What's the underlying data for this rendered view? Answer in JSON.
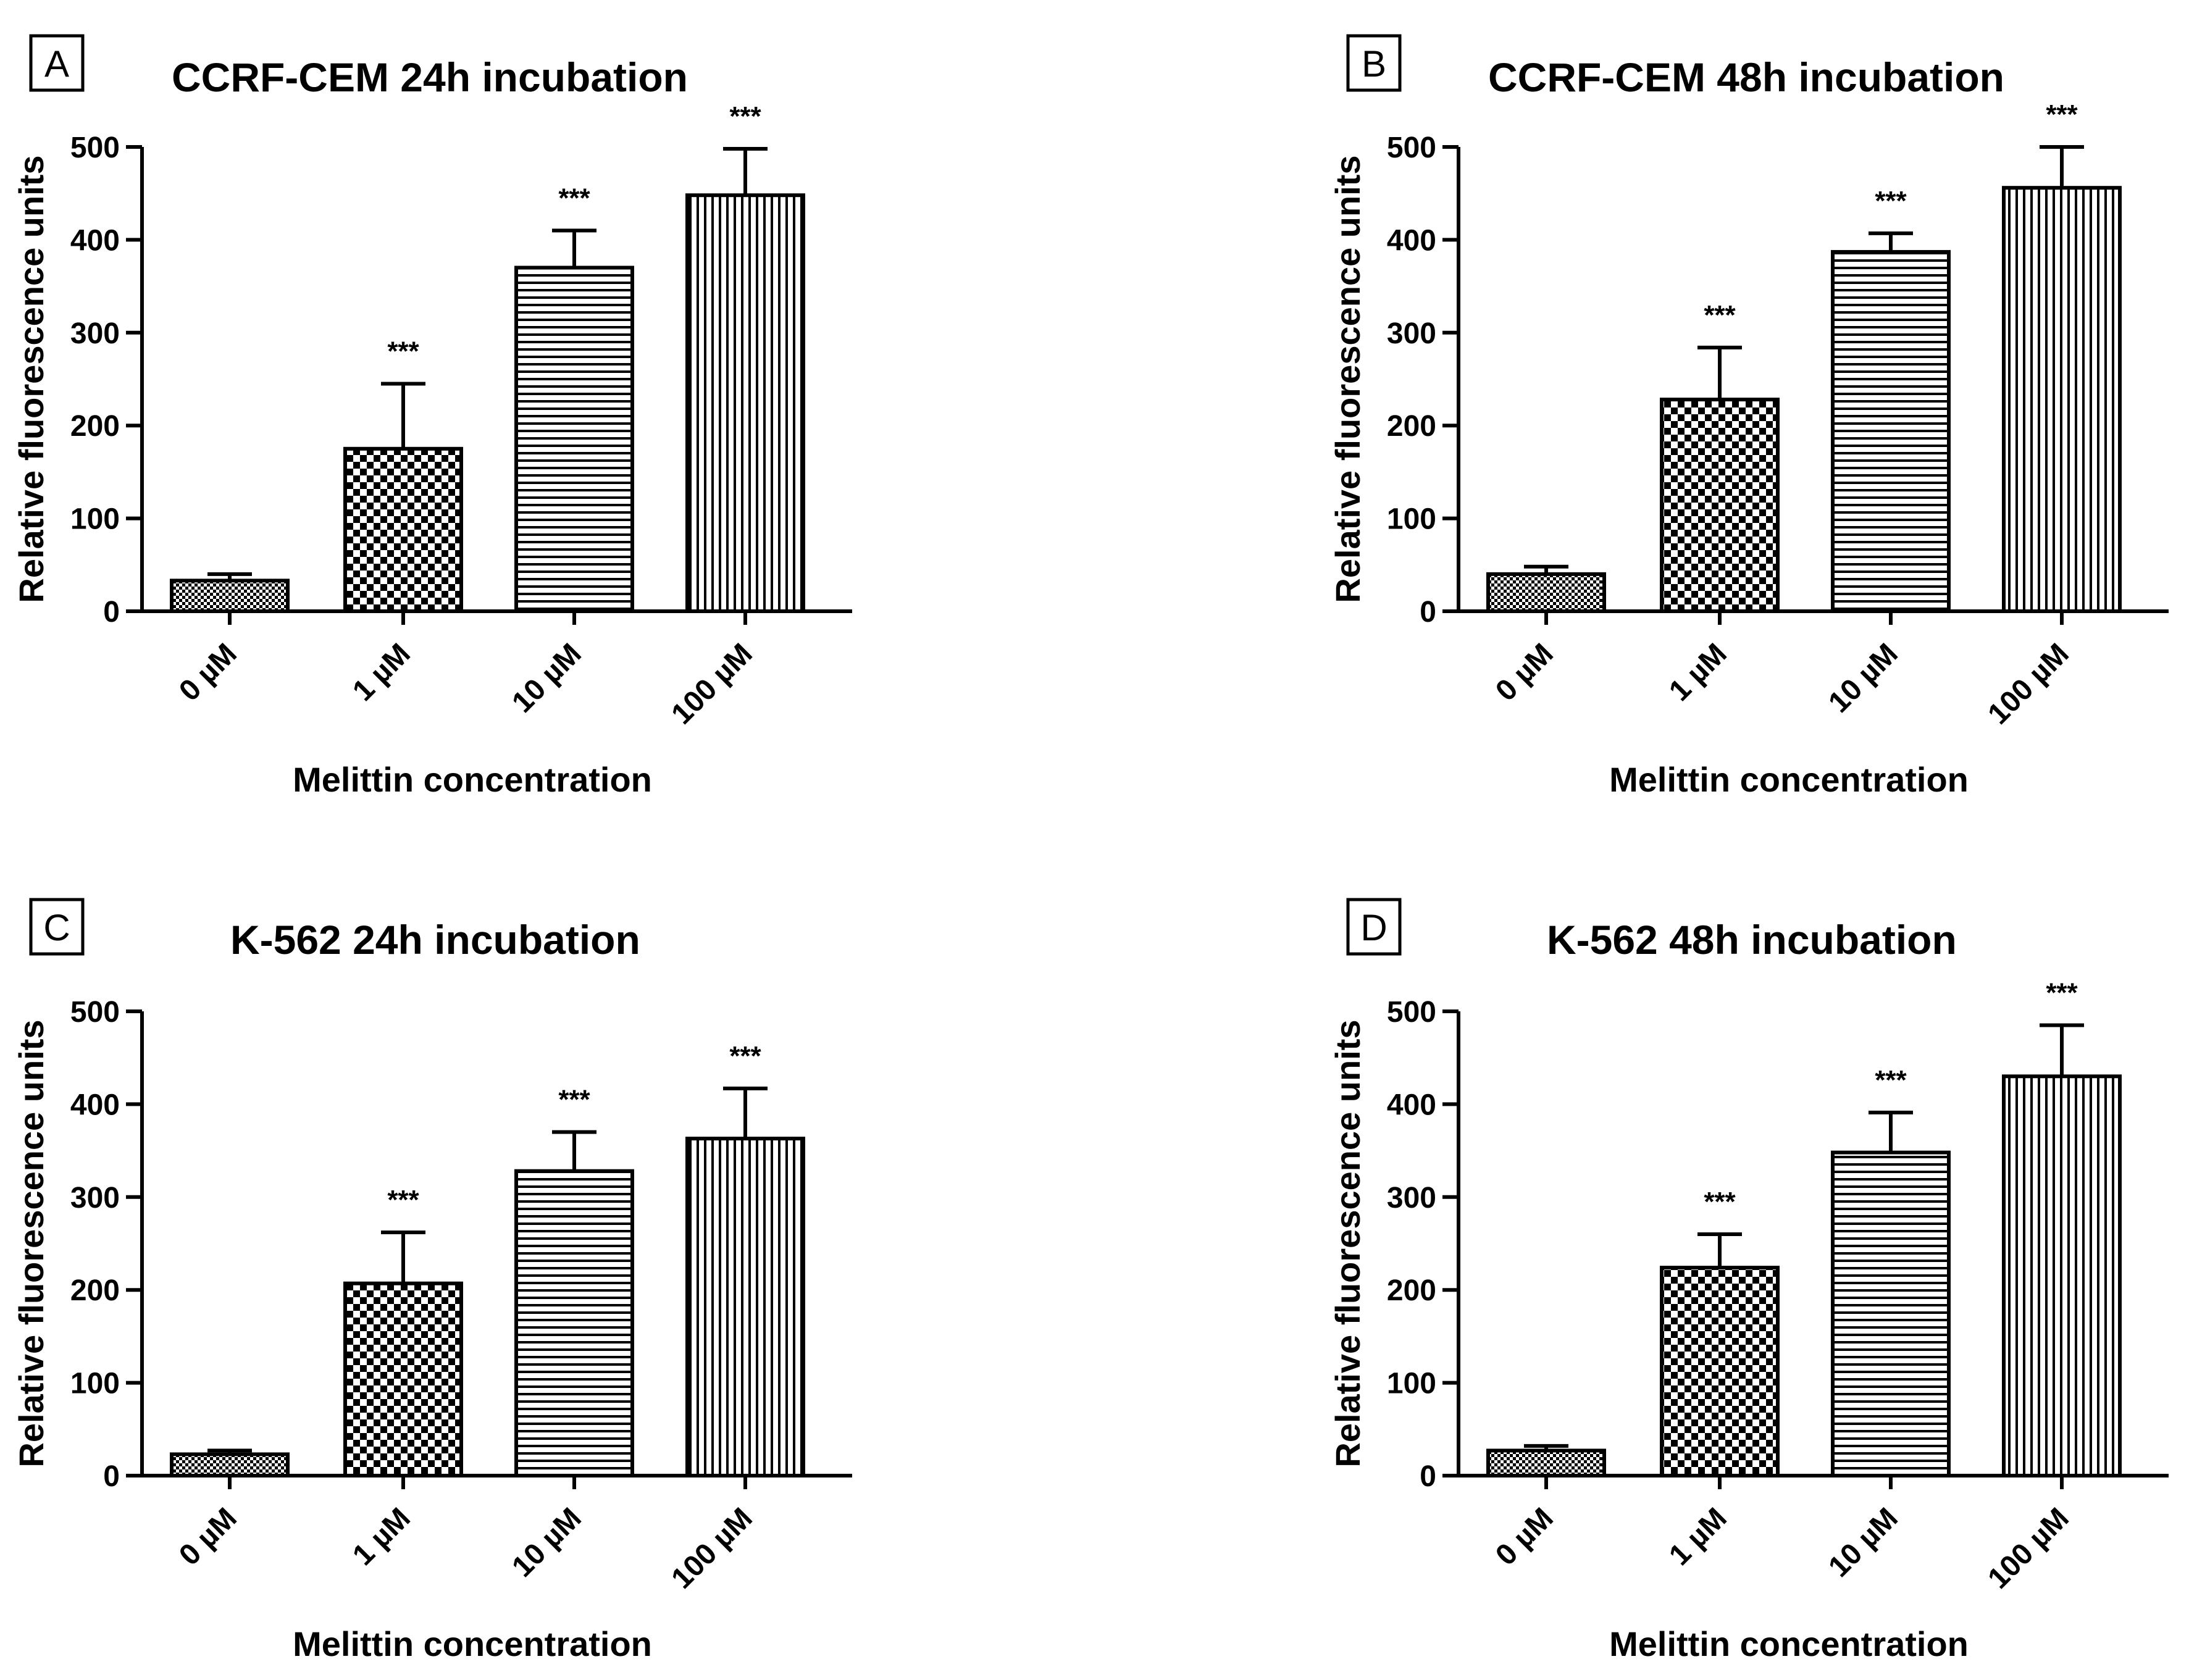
{
  "chart_data": [
    {
      "type": "bar",
      "panel_letter": "A",
      "title": "CCRF-CEM 24h incubation",
      "xlabel": "Melittin concentration",
      "ylabel": "Relative fluorescence units",
      "categories": [
        "0 µM",
        "1 µM",
        "10 µM",
        "100 µM"
      ],
      "values": [
        33,
        175,
        370,
        448
      ],
      "errors": [
        7,
        70,
        40,
        50
      ],
      "significance": [
        "",
        "***",
        "***",
        "***"
      ],
      "yticks": [
        0,
        100,
        200,
        300,
        400,
        500
      ],
      "ylim": [
        0,
        500
      ],
      "grid": false,
      "legend": "none",
      "patterns": [
        "fine-check",
        "checker",
        "horizontal-lines",
        "vertical-lines"
      ]
    },
    {
      "type": "bar",
      "panel_letter": "B",
      "title": "CCRF-CEM 48h incubation",
      "xlabel": "Melittin concentration",
      "ylabel": "Relative fluorescence units",
      "categories": [
        "0 µM",
        "1 µM",
        "10 µM",
        "100 µM"
      ],
      "values": [
        40,
        228,
        387,
        456
      ],
      "errors": [
        8,
        56,
        20,
        44
      ],
      "significance": [
        "",
        "***",
        "***",
        "***"
      ],
      "yticks": [
        0,
        100,
        200,
        300,
        400,
        500
      ],
      "ylim": [
        0,
        500
      ],
      "grid": false,
      "legend": "none",
      "patterns": [
        "fine-check",
        "checker",
        "horizontal-lines",
        "vertical-lines"
      ]
    },
    {
      "type": "bar",
      "panel_letter": "C",
      "title": "K-562 24h incubation",
      "xlabel": "Melittin concentration",
      "ylabel": "Relative fluorescence units",
      "categories": [
        "0 µM",
        "1 µM",
        "10 µM",
        "100 µM"
      ],
      "values": [
        23,
        207,
        328,
        363
      ],
      "errors": [
        4,
        55,
        42,
        54
      ],
      "significance": [
        "",
        "***",
        "***",
        "***"
      ],
      "yticks": [
        0,
        100,
        200,
        300,
        400,
        500
      ],
      "ylim": [
        0,
        500
      ],
      "grid": false,
      "legend": "none",
      "patterns": [
        "fine-check",
        "checker",
        "horizontal-lines",
        "vertical-lines"
      ]
    },
    {
      "type": "bar",
      "panel_letter": "D",
      "title": "K-562 48h incubation",
      "xlabel": "Melittin concentration",
      "ylabel": "Relative fluorescence units",
      "categories": [
        "0 µM",
        "1 µM",
        "10 µM",
        "100 µM"
      ],
      "values": [
        27,
        224,
        348,
        430
      ],
      "errors": [
        5,
        36,
        43,
        55
      ],
      "significance": [
        "",
        "***",
        "***",
        "***"
      ],
      "yticks": [
        0,
        100,
        200,
        300,
        400,
        500
      ],
      "ylim": [
        0,
        500
      ],
      "grid": false,
      "legend": "none",
      "patterns": [
        "fine-check",
        "checker",
        "horizontal-lines",
        "vertical-lines"
      ]
    }
  ]
}
